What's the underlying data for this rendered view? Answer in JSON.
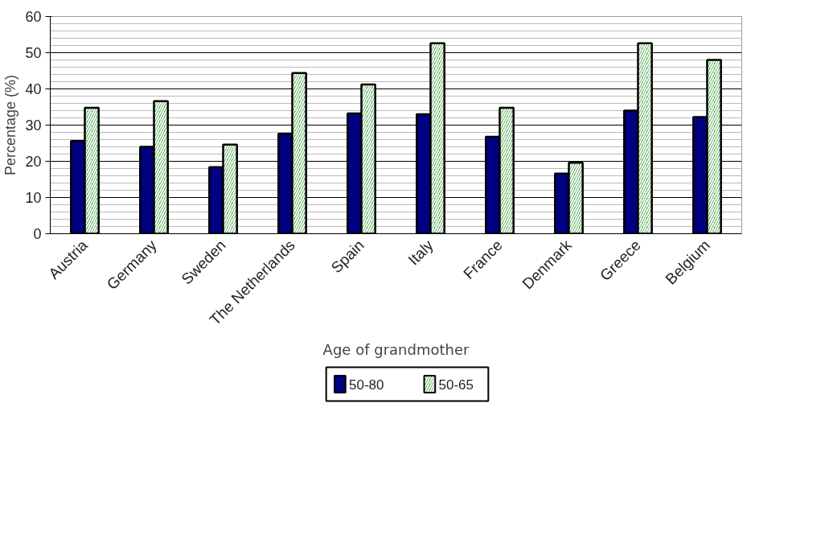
{
  "chart_data": {
    "type": "bar",
    "xlabel": "Age of grandmother",
    "ylabel": "Percentage (%)",
    "categories": [
      "Austria",
      "Germany",
      "Sweden",
      "The Netherlands",
      "Spain",
      "Italy",
      "France",
      "Denmark",
      "Greece",
      "Belgium"
    ],
    "series": [
      {
        "name": "50-80",
        "color": "#000080",
        "values": [
          25.6,
          24,
          18.4,
          27.6,
          33.2,
          33,
          26.8,
          16.6,
          34,
          32.2
        ]
      },
      {
        "name": "50-65",
        "color": "#339933",
        "values": [
          34.8,
          36.6,
          24.6,
          44.4,
          41.2,
          52.6,
          34.8,
          19.6,
          52.6,
          48
        ]
      }
    ],
    "ylim": [
      0,
      60
    ],
    "yticks": [
      0,
      10,
      20,
      30,
      40,
      50,
      60
    ],
    "grid": "y",
    "legend": "bottom"
  }
}
